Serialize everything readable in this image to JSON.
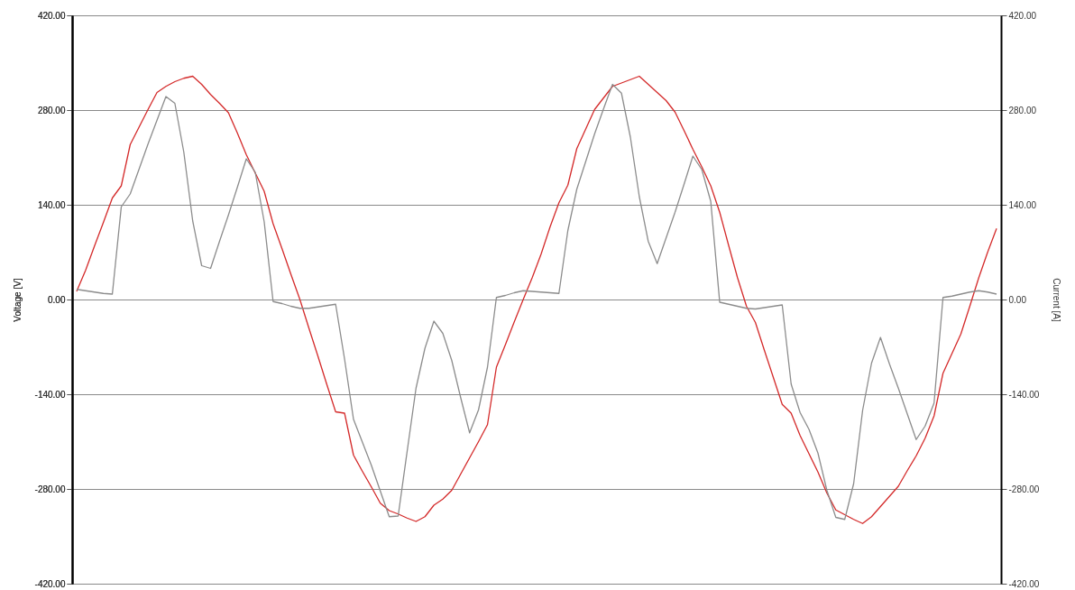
{
  "chart_data": {
    "type": "line",
    "ylabel": "Voltage [V]",
    "y2label": "Current [A]",
    "categories": [
      null,
      null,
      null,
      null,
      null,
      null,
      null,
      null,
      null,
      null,
      null,
      null,
      null,
      null,
      null,
      null,
      null,
      null,
      null,
      null,
      null,
      null,
      null,
      null,
      null,
      null,
      null,
      null,
      null,
      null,
      null,
      null,
      null,
      null,
      null,
      null,
      null,
      null,
      null,
      null,
      null,
      null,
      null,
      null,
      null,
      null,
      null,
      null,
      null,
      null,
      null,
      null,
      null,
      null,
      null,
      null,
      null,
      null,
      null,
      null,
      null,
      null,
      null,
      null,
      null,
      null,
      null,
      null,
      null,
      null,
      null,
      null,
      null,
      null,
      null,
      null,
      null,
      null,
      null,
      null,
      null,
      null,
      null,
      null,
      null,
      null,
      null,
      null,
      null,
      null,
      null,
      null,
      null,
      null,
      null,
      null,
      null,
      null,
      null,
      null,
      null,
      null,
      null,
      null
    ],
    "series": [
      {
        "color": "#d42a2a",
        "values": [
          12,
          43,
          79,
          114,
          150,
          168,
          229,
          255,
          281,
          306,
          315,
          322,
          327,
          330,
          318,
          303,
          290,
          276,
          246,
          214,
          187,
          160,
          112,
          75,
          37,
          0,
          -42,
          -83,
          -125,
          -166,
          -168,
          -230,
          -254,
          -277,
          -301,
          -312,
          -317,
          -323,
          -328,
          -321,
          -304,
          -295,
          -282,
          -258,
          -234,
          -210,
          -185,
          -100,
          -67,
          -33,
          0,
          32,
          67,
          107,
          143,
          169,
          223,
          252,
          281,
          298,
          315,
          320,
          325,
          330,
          318,
          306,
          294,
          277,
          250,
          222,
          196,
          168,
          129,
          80,
          32,
          -10,
          -34,
          -75,
          -115,
          -155,
          -168,
          -201,
          -228,
          -255,
          -286,
          -311,
          -318,
          -325,
          -331,
          -321,
          -306,
          -291,
          -276,
          -253,
          -231,
          -205,
          -172,
          -109,
          -80,
          -51,
          -10,
          32,
          70,
          105
        ]
      },
      {
        "color": "#8c8c8c",
        "values": [
          15,
          13,
          11,
          9,
          8,
          137,
          156,
          193,
          230,
          265,
          300,
          290,
          218,
          116,
          50,
          46,
          86,
          125,
          166,
          208,
          188,
          115,
          -3,
          -6,
          -10,
          -13,
          -13,
          -11,
          -9,
          -7,
          -88,
          -177,
          -211,
          -245,
          -283,
          -321,
          -320,
          -225,
          -131,
          -72,
          -32,
          -50,
          -90,
          -145,
          -197,
          -163,
          -100,
          3,
          6,
          10,
          13,
          12,
          11,
          10,
          9,
          102,
          163,
          204,
          245,
          282,
          318,
          305,
          240,
          152,
          86,
          53,
          91,
          129,
          170,
          212,
          192,
          145,
          -4,
          -7,
          -10,
          -13,
          -14,
          -12,
          -10,
          -8,
          -125,
          -167,
          -192,
          -227,
          -282,
          -322,
          -325,
          -272,
          -164,
          -94,
          -56,
          -95,
          -131,
          -169,
          -207,
          -187,
          -153,
          3,
          5,
          8,
          11,
          13,
          11,
          8
        ]
      }
    ],
    "ylim": [
      -420,
      420
    ],
    "yticks": [
      {
        "value": -420,
        "label": "-420.00"
      },
      {
        "value": -280,
        "label": "-280.00"
      },
      {
        "value": -140,
        "label": "-140.00"
      },
      {
        "value": 0,
        "label": "0.00"
      },
      {
        "value": 140,
        "label": "140.00"
      },
      {
        "value": 280,
        "label": "280.00"
      },
      {
        "value": 420,
        "label": "420.00"
      }
    ],
    "y2lim": [
      -420,
      420
    ],
    "y2ticks": [
      {
        "value": -420,
        "label": "-420.00"
      },
      {
        "value": -280,
        "label": "-280.00"
      },
      {
        "value": -140,
        "label": "-140.00"
      },
      {
        "value": 0,
        "label": "0.00"
      },
      {
        "value": 140,
        "label": "140.00"
      },
      {
        "value": 280,
        "label": "280.00"
      },
      {
        "value": 420,
        "label": "420.00"
      }
    ],
    "grid": "y",
    "line_style": "solid"
  }
}
